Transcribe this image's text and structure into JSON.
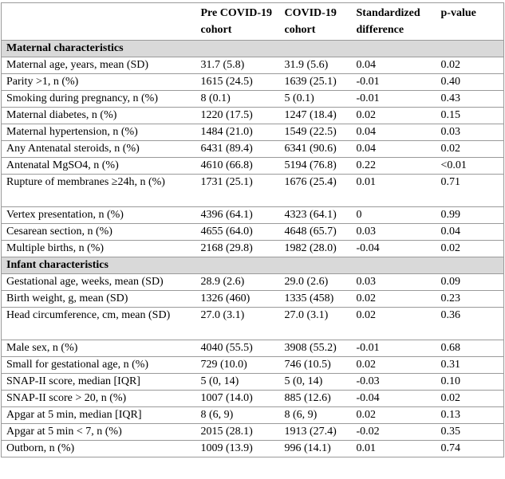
{
  "headers": [
    "",
    "Pre COVID-19 cohort",
    "COVID-19 cohort",
    "Standardized difference",
    "p-value"
  ],
  "sections": [
    {
      "title": "Maternal characteristics",
      "rows": [
        [
          "Maternal age, years, mean (SD)",
          "31.7 (5.8)",
          "31.9 (5.6)",
          "0.04",
          "0.02"
        ],
        [
          "Parity >1, n (%)",
          "1615 (24.5)",
          "1639 (25.1)",
          "-0.01",
          "0.40"
        ],
        [
          "Smoking during pregnancy, n (%)",
          "8 (0.1)",
          "5 (0.1)",
          "-0.01",
          "0.43"
        ],
        [
          "Maternal diabetes, n (%)",
          "1220 (17.5)",
          "1247 (18.4)",
          "0.02",
          "0.15"
        ],
        [
          "Maternal hypertension, n (%)",
          "1484 (21.0)",
          "1549 (22.5)",
          "0.04",
          "0.03"
        ],
        [
          "Any Antenatal steroids, n (%)",
          "6431 (89.4)",
          "6341 (90.6)",
          "0.04",
          "0.02"
        ],
        [
          "Antenatal MgSO4, n (%)",
          "4610 (66.8)",
          "5194 (76.8)",
          "0.22",
          "<0.01"
        ],
        [
          "Rupture of membranes ≥24h, n (%)",
          "1731 (25.1)",
          "1676 (25.4)",
          "0.01",
          "0.71"
        ],
        [
          "Vertex presentation, n (%)",
          "4396 (64.1)",
          "4323 (64.1)",
          "0",
          "0.99"
        ],
        [
          "Cesarean section, n (%)",
          "4655 (64.0)",
          "4648 (65.7)",
          "0.03",
          "0.04"
        ],
        [
          "Multiple births, n (%)",
          "2168 (29.8)",
          "1982 (28.0)",
          "-0.04",
          "0.02"
        ]
      ]
    },
    {
      "title": "Infant characteristics",
      "rows": [
        [
          "Gestational age, weeks, mean (SD)",
          "28.9 (2.6)",
          "29.0 (2.6)",
          "0.03",
          "0.09"
        ],
        [
          "Birth weight, g, mean (SD)",
          "1326 (460)",
          "1335 (458)",
          "0.02",
          "0.23"
        ],
        [
          "Head circumference, cm, mean (SD)",
          "27.0 (3.1)",
          "27.0 (3.1)",
          "0.02",
          "0.36"
        ],
        [
          "Male sex, n (%)",
          "4040 (55.5)",
          "3908 (55.2)",
          "-0.01",
          "0.68"
        ],
        [
          "Small for gestational age, n (%)",
          "729 (10.0)",
          "746 (10.5)",
          "0.02",
          "0.31"
        ],
        [
          "SNAP-II score, median [IQR]",
          "5 (0, 14)",
          "5 (0, 14)",
          "-0.03",
          "0.10"
        ],
        [
          "SNAP-II score > 20, n (%)",
          "1007 (14.0)",
          "885 (12.6)",
          "-0.04",
          "0.02"
        ],
        [
          "Apgar at 5 min, median [IQR]",
          "8 (6, 9)",
          "8 (6, 9)",
          "0.02",
          "0.13"
        ],
        [
          "Apgar at 5 min < 7, n (%)",
          "2015 (28.1)",
          "1913 (27.4)",
          "-0.02",
          "0.35"
        ],
        [
          "Outborn, n (%)",
          "1009 (13.9)",
          "996 (14.1)",
          "0.01",
          "0.74"
        ]
      ]
    }
  ]
}
